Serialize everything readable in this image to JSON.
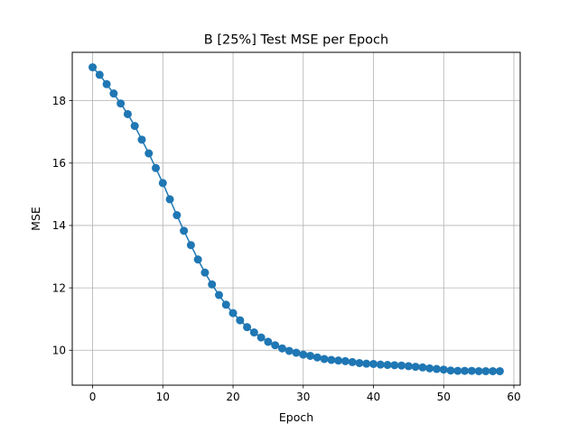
{
  "chart_data": {
    "type": "line",
    "title": "B [25%] Test MSE per Epoch",
    "xlabel": "Epoch",
    "ylabel": "MSE",
    "xlim": [
      -2.9,
      60.9
    ],
    "ylim": [
      8.88,
      19.55
    ],
    "xticks": [
      0,
      10,
      20,
      30,
      40,
      50,
      60
    ],
    "yticks": [
      10,
      12,
      14,
      16,
      18
    ],
    "grid": true,
    "legend": "none",
    "series": [
      {
        "color": "#1f77b4",
        "marker": "circle",
        "x": [
          0,
          1,
          2,
          3,
          4,
          5,
          6,
          7,
          8,
          9,
          10,
          11,
          12,
          13,
          14,
          15,
          16,
          17,
          18,
          19,
          20,
          21,
          22,
          23,
          24,
          25,
          26,
          27,
          28,
          29,
          30,
          31,
          32,
          33,
          34,
          35,
          36,
          37,
          38,
          39,
          40,
          41,
          42,
          43,
          44,
          45,
          46,
          47,
          48,
          49,
          50,
          51,
          52,
          53,
          54,
          55,
          56,
          57,
          58
        ],
        "y": [
          19.07,
          18.83,
          18.53,
          18.23,
          17.91,
          17.57,
          17.19,
          16.75,
          16.31,
          15.84,
          15.36,
          14.84,
          14.33,
          13.83,
          13.37,
          12.91,
          12.49,
          12.11,
          11.77,
          11.46,
          11.19,
          10.96,
          10.74,
          10.57,
          10.41,
          10.27,
          10.16,
          10.06,
          9.98,
          9.92,
          9.86,
          9.82,
          9.77,
          9.72,
          9.69,
          9.67,
          9.65,
          9.62,
          9.59,
          9.57,
          9.56,
          9.54,
          9.53,
          9.52,
          9.51,
          9.49,
          9.47,
          9.45,
          9.42,
          9.4,
          9.38,
          9.35,
          9.34,
          9.34,
          9.34,
          9.33,
          9.33,
          9.33,
          9.33
        ]
      }
    ]
  }
}
